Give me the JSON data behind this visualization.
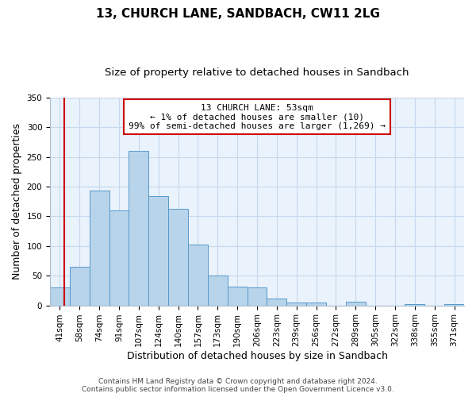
{
  "title": "13, CHURCH LANE, SANDBACH, CW11 2LG",
  "subtitle": "Size of property relative to detached houses in Sandbach",
  "xlabel": "Distribution of detached houses by size in Sandbach",
  "ylabel": "Number of detached properties",
  "bin_labels": [
    "41sqm",
    "58sqm",
    "74sqm",
    "91sqm",
    "107sqm",
    "124sqm",
    "140sqm",
    "157sqm",
    "173sqm",
    "190sqm",
    "206sqm",
    "223sqm",
    "239sqm",
    "256sqm",
    "272sqm",
    "289sqm",
    "305sqm",
    "322sqm",
    "338sqm",
    "355sqm",
    "371sqm"
  ],
  "bar_values": [
    30,
    65,
    193,
    160,
    260,
    184,
    163,
    103,
    50,
    32,
    30,
    11,
    5,
    5,
    0,
    6,
    0,
    0,
    2,
    0,
    2
  ],
  "bar_color": "#b8d4ea",
  "bar_edge_color": "#5599cc",
  "background_color": "#ffffff",
  "plot_bg_color": "#eaf2fb",
  "grid_color": "#c5d8ec",
  "annotation_box_text": "13 CHURCH LANE: 53sqm\n← 1% of detached houses are smaller (10)\n99% of semi-detached houses are larger (1,269) →",
  "annotation_box_color": "#ffffff",
  "annotation_box_edge_color": "#cc0000",
  "annotation_text_color": "#000000",
  "marker_line_color": "#cc0000",
  "ylim": [
    0,
    350
  ],
  "yticks": [
    0,
    50,
    100,
    150,
    200,
    250,
    300,
    350
  ],
  "footer_line1": "Contains HM Land Registry data © Crown copyright and database right 2024.",
  "footer_line2": "Contains public sector information licensed under the Open Government Licence v3.0.",
  "title_fontsize": 11,
  "subtitle_fontsize": 9.5,
  "axis_label_fontsize": 9,
  "tick_fontsize": 7.5,
  "annotation_fontsize": 8,
  "footer_fontsize": 6.5
}
